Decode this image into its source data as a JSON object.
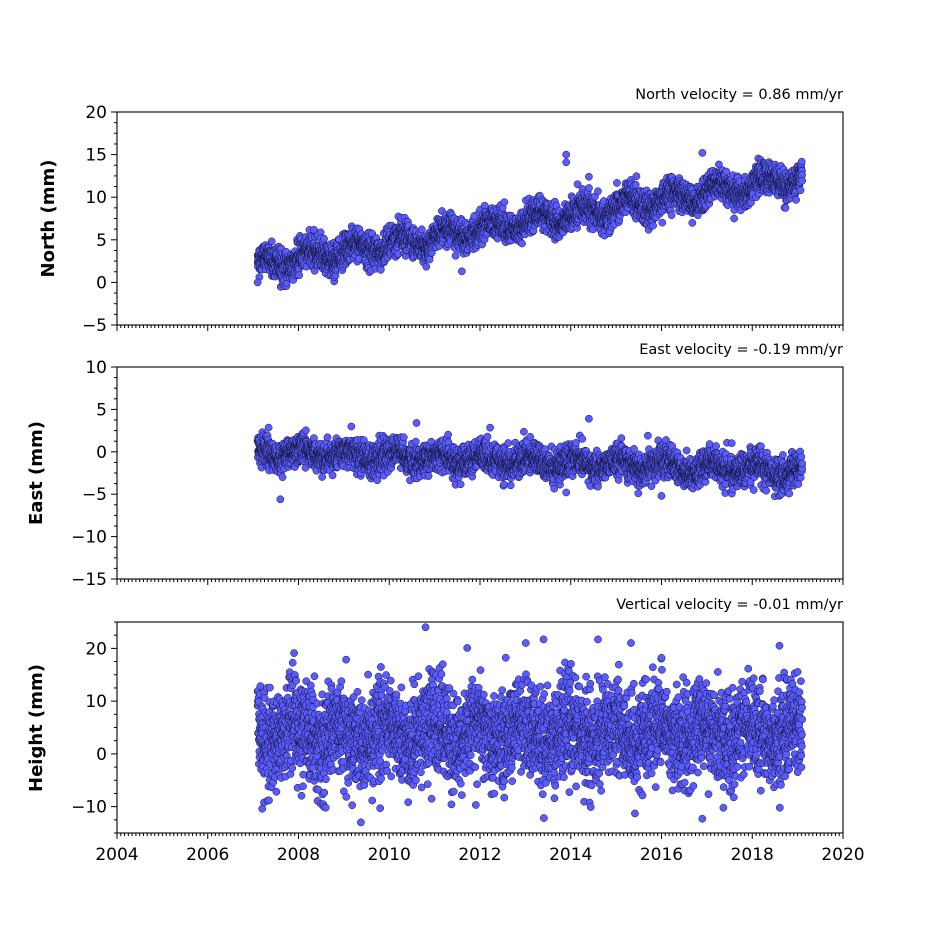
{
  "colors": {
    "marker_fill": "#5a5cff",
    "marker_edge": "#111133",
    "axis": "#000000",
    "background": "#ffffff"
  },
  "chart_data": [
    {
      "type": "scatter",
      "title": "North velocity = 0.86 mm/yr",
      "ylabel": "North (mm)",
      "xlabel": "",
      "xlim": [
        2004,
        2020
      ],
      "ylim": [
        -5,
        20
      ],
      "yticks": [
        -5,
        0,
        5,
        10,
        15,
        20
      ],
      "xticks": [
        2004,
        2006,
        2008,
        2010,
        2012,
        2014,
        2016,
        2018,
        2020
      ],
      "x_tick_labels_shown": false,
      "grid": false,
      "series": [
        {
          "model": {
            "t_start": 2007.1,
            "t_end": 2019.1,
            "intercept_at_start": 2.0,
            "slope_mm_per_yr": 0.86,
            "scatter_sd": 0.9,
            "seasonal_amplitude": 0.8
          },
          "outliers": [
            [
              2007.1,
              0.0
            ],
            [
              2011.6,
              1.3
            ],
            [
              2013.9,
              15.0
            ],
            [
              2013.9,
              14.1
            ],
            [
              2014.4,
              12.4
            ],
            [
              2014.6,
              10.7
            ],
            [
              2016.9,
              15.2
            ],
            [
              2017.6,
              7.5
            ]
          ]
        }
      ]
    },
    {
      "type": "scatter",
      "title": "East velocity = -0.19 mm/yr",
      "ylabel": "East (mm)",
      "xlabel": "",
      "xlim": [
        2004,
        2020
      ],
      "ylim": [
        -15,
        10
      ],
      "yticks": [
        -15,
        -10,
        -5,
        0,
        5,
        10
      ],
      "xticks": [
        2004,
        2006,
        2008,
        2010,
        2012,
        2014,
        2016,
        2018,
        2020
      ],
      "x_tick_labels_shown": false,
      "grid": false,
      "series": [
        {
          "model": {
            "t_start": 2007.1,
            "t_end": 2019.1,
            "intercept_at_start": 0.0,
            "slope_mm_per_yr": -0.19,
            "scatter_sd": 0.9,
            "seasonal_amplitude": 0.6
          },
          "outliers": [
            [
              2007.6,
              -5.6
            ],
            [
              2010.6,
              3.4
            ],
            [
              2014.4,
              3.9
            ],
            [
              2015.7,
              1.9
            ],
            [
              2016.0,
              -5.2
            ],
            [
              2013.9,
              -4.8
            ]
          ]
        }
      ]
    },
    {
      "type": "scatter",
      "title": "Vertical velocity = -0.01 mm/yr",
      "ylabel": "Height (mm)",
      "xlabel": "",
      "xlim": [
        2004,
        2020
      ],
      "ylim": [
        -15,
        25
      ],
      "yticks": [
        -10,
        0,
        10,
        20
      ],
      "xticks": [
        2004,
        2006,
        2008,
        2010,
        2012,
        2014,
        2016,
        2018,
        2020
      ],
      "x_tick_labels_shown": true,
      "grid": false,
      "series": [
        {
          "model": {
            "t_start": 2007.1,
            "t_end": 2019.1,
            "intercept_at_start": 4.0,
            "slope_mm_per_yr": -0.01,
            "scatter_sd": 4.6,
            "seasonal_amplitude": 2.0
          },
          "outliers": [
            [
              2010.8,
              24.0
            ],
            [
              2013.4,
              21.7
            ],
            [
              2014.6,
              21.7
            ],
            [
              2018.6,
              20.5
            ],
            [
              2016.9,
              -12.3
            ],
            [
              2007.2,
              -10.4
            ],
            [
              2008.6,
              -10.2
            ],
            [
              2009.8,
              -10.3
            ]
          ]
        }
      ]
    }
  ]
}
